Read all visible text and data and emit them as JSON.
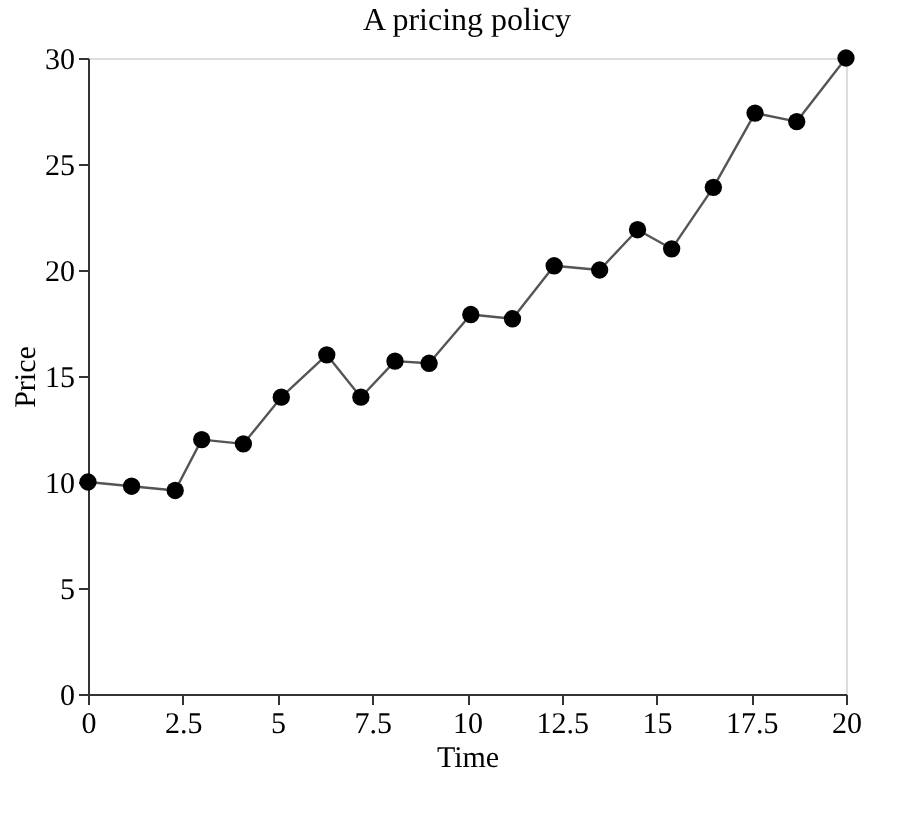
{
  "chart_data": {
    "type": "line",
    "title": "A pricing policy",
    "xlabel": "Time",
    "ylabel": "Price",
    "x": [
      0,
      1.15,
      2.3,
      3.0,
      4.1,
      5.1,
      6.3,
      7.2,
      8.1,
      9.0,
      10.1,
      11.2,
      12.3,
      13.5,
      14.5,
      15.4,
      16.5,
      17.6,
      18.7,
      20
    ],
    "series": [
      {
        "color": "#000000",
        "values": [
          10,
          9.8,
          9.6,
          12,
          11.8,
          14,
          16,
          14,
          15.7,
          15.6,
          17.9,
          17.7,
          20.2,
          20,
          21.9,
          21,
          23.9,
          27.4,
          27,
          30
        ]
      }
    ],
    "xlim": [
      0,
      20
    ],
    "xticks": [
      0,
      2.5,
      5,
      7.5,
      10,
      12.5,
      15,
      17.5,
      20
    ],
    "ylim": [
      0,
      30
    ],
    "yticks": [
      0,
      5,
      10,
      15,
      20,
      25,
      30
    ],
    "grid": false,
    "legend": false,
    "marker": "circle",
    "line_style": "solid"
  }
}
